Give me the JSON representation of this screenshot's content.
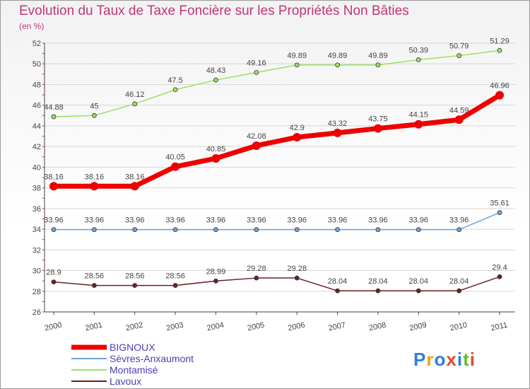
{
  "title": "Evolution du Taux de Taxe Foncière sur les Propriétés Non Bâties",
  "subtitle": "(en %)",
  "logo_text": "Proxiti",
  "chart_data": {
    "type": "line",
    "x": [
      "2000",
      "2001",
      "2002",
      "2003",
      "2004",
      "2005",
      "2006",
      "2007",
      "2008",
      "2009",
      "2010",
      "2011"
    ],
    "ylim": [
      26,
      52
    ],
    "yticks": [
      26,
      28,
      30,
      32,
      34,
      36,
      38,
      40,
      42,
      44,
      46,
      48,
      50,
      52
    ],
    "series": [
      {
        "name": "BIGNOUX",
        "color": "#ee0000",
        "emphasis": true,
        "values": [
          38.16,
          38.16,
          38.16,
          40.05,
          40.85,
          42.08,
          42.9,
          43.32,
          43.75,
          44.15,
          44.59,
          46.96
        ],
        "labels": [
          "38.16",
          "38.16",
          "38.16",
          "40.05",
          "40.85",
          "42.08",
          "42.9",
          "43.32",
          "43.75",
          "44.15",
          "44.59",
          "46.96"
        ]
      },
      {
        "name": "Sèvres-Anxaumont",
        "color": "#6fa3d6",
        "values": [
          33.96,
          33.96,
          33.96,
          33.96,
          33.96,
          33.96,
          33.96,
          33.96,
          33.96,
          33.96,
          33.96,
          35.61
        ],
        "labels": [
          "33.96",
          "33.96",
          "33.96",
          "33.96",
          "33.96",
          "33.96",
          "33.96",
          "33.96",
          "33.96",
          "33.96",
          "33.96",
          "35.61"
        ]
      },
      {
        "name": "Montamisé",
        "color": "#99e05f",
        "values": [
          44.88,
          45,
          46.12,
          47.5,
          48.43,
          49.16,
          49.89,
          49.89,
          49.89,
          50.39,
          50.79,
          51.29
        ],
        "labels": [
          "44.88",
          "45",
          "46.12",
          "47.5",
          "48.43",
          "49.16",
          "49.89",
          "49.89",
          "49.89",
          "50.39",
          "50.79",
          "51.29"
        ]
      },
      {
        "name": "Lavoux",
        "color": "#6b1f24",
        "values": [
          28.9,
          28.56,
          28.56,
          28.56,
          28.99,
          29.28,
          29.28,
          28.04,
          28.04,
          28.04,
          28.04,
          29.4
        ],
        "labels": [
          "28.9",
          "28.56",
          "28.56",
          "28.56",
          "28.99",
          "29.28",
          "29.28",
          "28.04",
          "28.04",
          "28.04",
          "28.04",
          "29.4"
        ]
      }
    ],
    "grid": "horizontal",
    "legend_position": "bottom-left"
  }
}
